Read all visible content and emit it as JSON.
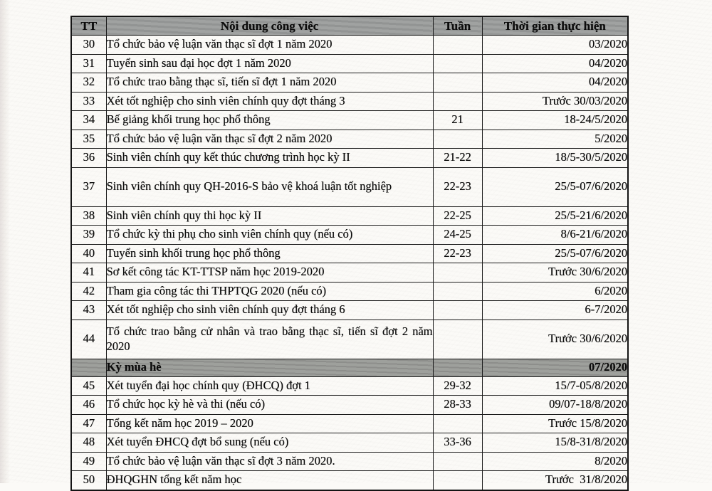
{
  "colors": {
    "page_background": "#fbfaf7",
    "header_background": "#9b9d9c",
    "section_background": "#989a96",
    "border": "#1b1b1b",
    "text": "#0c0c0c"
  },
  "table": {
    "columns": {
      "tt": "TT",
      "content": "Nội dung công việc",
      "week": "Tuần",
      "time": "Thời gian thực hiện"
    },
    "rows": [
      {
        "kind": "normal",
        "tt": "30",
        "content": "Tổ chức bảo vệ luận văn thạc sĩ đợt 1 năm 2020",
        "week": "",
        "time": "03/2020"
      },
      {
        "kind": "normal",
        "tt": "31",
        "content": "Tuyển sinh sau đại học đợt 1 năm 2020",
        "week": "",
        "time": "04/2020"
      },
      {
        "kind": "normal",
        "tt": "32",
        "content": "Tổ chức trao bằng thạc sĩ, tiến sĩ đợt 1 năm 2020",
        "week": "",
        "time": "04/2020"
      },
      {
        "kind": "normal",
        "tt": "33",
        "content": "Xét tốt nghiệp cho sinh viên chính quy đợt tháng 3",
        "week": "",
        "time": "Trước 30/03/2020"
      },
      {
        "kind": "normal",
        "tt": "34",
        "content": "Bế giảng khối trung học phổ thông",
        "week": "21",
        "time": "18-24/5/2020"
      },
      {
        "kind": "normal",
        "tt": "35",
        "content": "Tổ chức bảo vệ luận văn thạc sĩ đợt 2 năm 2020",
        "week": "",
        "time": "5/2020"
      },
      {
        "kind": "normal",
        "tt": "36",
        "content": "Sinh viên chính quy kết thúc chương trình học kỳ II",
        "week": "21-22",
        "time": "18/5-30/5/2020"
      },
      {
        "kind": "tall",
        "tt": "37",
        "content": "Sinh viên chính quy QH-2016-S bảo vệ khoá luận tốt nghiệp",
        "week": "22-23",
        "time": "25/5-07/6/2020"
      },
      {
        "kind": "normal",
        "tt": "38",
        "content": "Sinh viên chính quy thi học kỳ II",
        "week": "22-25",
        "time": "25/5-21/6/2020"
      },
      {
        "kind": "normal",
        "tt": "39",
        "content": "Tổ chức kỳ thi phụ cho sinh viên chính quy (nếu có)",
        "week": "24-25",
        "time": "8/6-21/6/2020"
      },
      {
        "kind": "normal",
        "tt": "40",
        "content": "Tuyển sinh khối trung học phổ thông",
        "week": "22-23",
        "time": "25/5-07/6/2020"
      },
      {
        "kind": "normal",
        "tt": "41",
        "content": "Sơ kết công tác KT-TTSP năm học 2019-2020",
        "week": "",
        "time": "Trước 30/6/2020"
      },
      {
        "kind": "normal",
        "tt": "42",
        "content": "Tham gia công tác thi THPTQG 2020 (nếu có)",
        "week": "",
        "time": "6/2020"
      },
      {
        "kind": "normal",
        "tt": "43",
        "content": "Xét tốt nghiệp cho sinh viên chính quy đợt tháng 6",
        "week": "",
        "time": "6-7/2020"
      },
      {
        "kind": "tall",
        "tt": "44",
        "content": "Tổ chức trao bằng cử nhân và trao bằng thạc sĩ, tiến sĩ đợt 2 năm 2020",
        "week": "",
        "time": "Trước 30/6/2020"
      },
      {
        "kind": "section",
        "tt": "",
        "content": "Kỳ mùa hè",
        "week": "",
        "time": "07/2020"
      },
      {
        "kind": "normal",
        "tt": "45",
        "content": "Xét tuyển đại học chính quy (ĐHCQ) đợt 1",
        "week": "29-32",
        "time": "15/7-05/8/2020"
      },
      {
        "kind": "normal",
        "tt": "46",
        "content": "Tổ chức học kỳ hè và thi (nếu có)",
        "week": "28-33",
        "time": "09/07-18/8/2020"
      },
      {
        "kind": "normal",
        "tt": "47",
        "content": "Tổng kết năm học 2019 – 2020",
        "week": "",
        "time": "Trước 15/8/2020"
      },
      {
        "kind": "normal",
        "tt": "48",
        "content": "Xét tuyển ĐHCQ đợt bổ sung (nếu có)",
        "week": "33-36",
        "time": "15/8-31/8/2020"
      },
      {
        "kind": "normal",
        "tt": "49",
        "content": "Tổ chức bảo vệ luận văn thạc sĩ đợt 3 năm 2020.",
        "week": "",
        "time": "8/2020"
      },
      {
        "kind": "normal",
        "tt": "50",
        "content": "ĐHQGHN tổng kết năm học",
        "week": "",
        "time": "Trước  31/8/2020"
      }
    ]
  }
}
